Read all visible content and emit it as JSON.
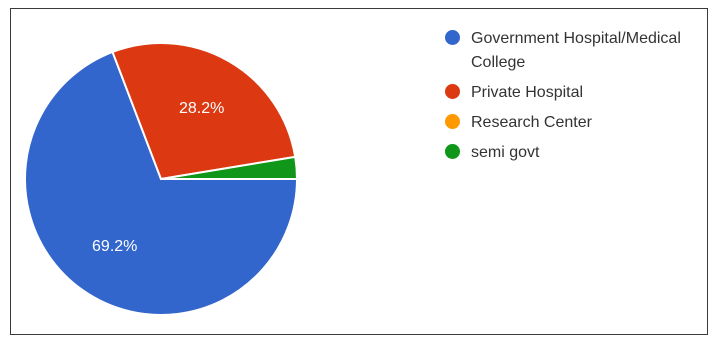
{
  "chart_data": {
    "type": "pie",
    "slices": [
      {
        "label": "Government Hospital/Medical College",
        "value": 69.2,
        "display": "69.2%",
        "color": "#3366cc"
      },
      {
        "label": "Private Hospital",
        "value": 28.2,
        "display": "28.2%",
        "color": "#dc3912"
      },
      {
        "label": "Research Center",
        "value": 0,
        "display": "",
        "color": "#ff9900"
      },
      {
        "label": "semi govt",
        "value": 2.6,
        "display": "",
        "color": "#109618"
      }
    ],
    "legend_position": "right"
  }
}
